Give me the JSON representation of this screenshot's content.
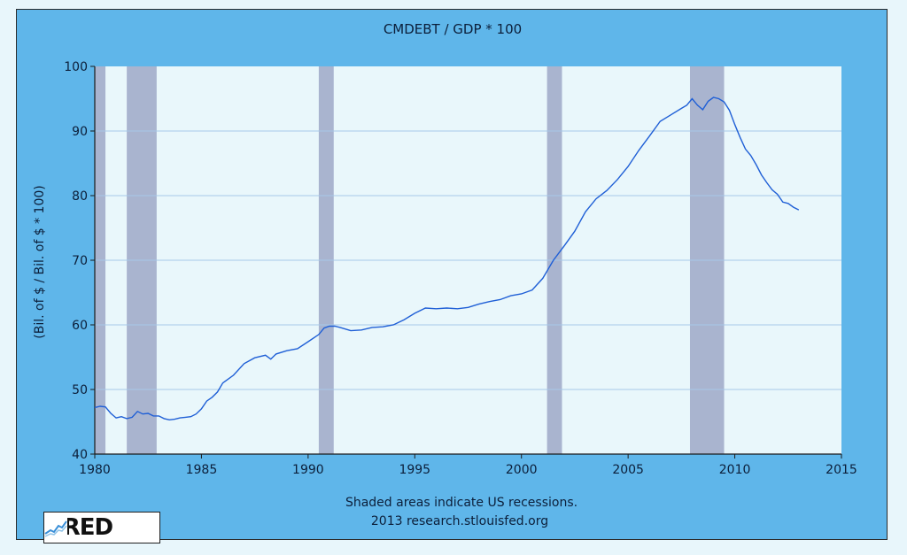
{
  "chart_data": {
    "type": "line",
    "title": "CMDEBT / GDP * 100",
    "ylabel": "(Bil. of $ / Bil. of $ * 100)",
    "xlabel": "",
    "xlim": [
      1980,
      2015
    ],
    "ylim": [
      40,
      100
    ],
    "x_ticks": [
      1980,
      1985,
      1990,
      1995,
      2000,
      2005,
      2010,
      2015
    ],
    "y_ticks": [
      40,
      50,
      60,
      70,
      80,
      90,
      100
    ],
    "grid": "horizontal",
    "recessions": [
      [
        1980.0,
        1980.5
      ],
      [
        1981.5,
        1982.9
      ],
      [
        1990.5,
        1991.2
      ],
      [
        2001.2,
        2001.9
      ],
      [
        2007.9,
        2009.5
      ]
    ],
    "series": [
      {
        "name": "CMDEBT / GDP * 100",
        "color": "#1f5fd6",
        "x": [
          1980.0,
          1980.25,
          1980.5,
          1980.75,
          1981.0,
          1981.25,
          1981.5,
          1981.75,
          1982.0,
          1982.25,
          1982.5,
          1982.75,
          1983.0,
          1983.25,
          1983.5,
          1983.75,
          1984.0,
          1984.25,
          1984.5,
          1984.75,
          1985.0,
          1985.25,
          1985.5,
          1985.75,
          1986.0,
          1986.5,
          1987.0,
          1987.5,
          1988.0,
          1988.25,
          1988.5,
          1989.0,
          1989.5,
          1990.0,
          1990.5,
          1990.75,
          1991.0,
          1991.25,
          1991.5,
          1992.0,
          1992.5,
          1993.0,
          1993.5,
          1994.0,
          1994.5,
          1995.0,
          1995.5,
          1996.0,
          1996.5,
          1997.0,
          1997.5,
          1998.0,
          1998.5,
          1999.0,
          1999.5,
          2000.0,
          2000.5,
          2001.0,
          2001.5,
          2002.0,
          2002.5,
          2003.0,
          2003.5,
          2004.0,
          2004.5,
          2005.0,
          2005.5,
          2006.0,
          2006.5,
          2007.0,
          2007.5,
          2007.75,
          2008.0,
          2008.25,
          2008.5,
          2008.75,
          2009.0,
          2009.25,
          2009.5,
          2009.75,
          2010.0,
          2010.25,
          2010.5,
          2010.75,
          2011.0,
          2011.25,
          2011.5,
          2011.75,
          2012.0,
          2012.25,
          2012.5,
          2012.75,
          2013.0
        ],
        "values": [
          47.2,
          47.4,
          47.3,
          46.3,
          45.6,
          45.8,
          45.5,
          45.7,
          46.6,
          46.2,
          46.3,
          45.9,
          45.9,
          45.5,
          45.3,
          45.4,
          45.6,
          45.7,
          45.8,
          46.2,
          47.0,
          48.2,
          48.8,
          49.6,
          51.0,
          52.2,
          54.0,
          54.9,
          55.3,
          54.7,
          55.5,
          56.0,
          56.3,
          57.4,
          58.5,
          59.5,
          59.8,
          59.8,
          59.6,
          59.1,
          59.2,
          59.6,
          59.7,
          60.0,
          60.8,
          61.8,
          62.6,
          62.5,
          62.6,
          62.5,
          62.7,
          63.2,
          63.6,
          63.9,
          64.5,
          64.8,
          65.4,
          67.2,
          70.0,
          72.2,
          74.5,
          77.5,
          79.5,
          80.8,
          82.5,
          84.5,
          87.0,
          89.2,
          91.5,
          92.5,
          93.5,
          94.0,
          95.0,
          94.0,
          93.3,
          94.6,
          95.2,
          95.0,
          94.5,
          93.2,
          91.0,
          89.0,
          87.2,
          86.2,
          84.8,
          83.2,
          82.0,
          80.9,
          80.2,
          79.0,
          78.8,
          78.2,
          77.8
        ]
      }
    ],
    "note_lines": [
      "Shaded areas indicate US recessions.",
      "2013 research.stlouisfed.org"
    ]
  },
  "logo": {
    "text": "FRED"
  },
  "colors": {
    "frame": "#5fb6ea",
    "plot_bg": "#e9f7fb",
    "recession": "#a9b4cf",
    "grid": "#a6c8e8",
    "line": "#1f5fd6",
    "text": "#0c1f3a"
  }
}
